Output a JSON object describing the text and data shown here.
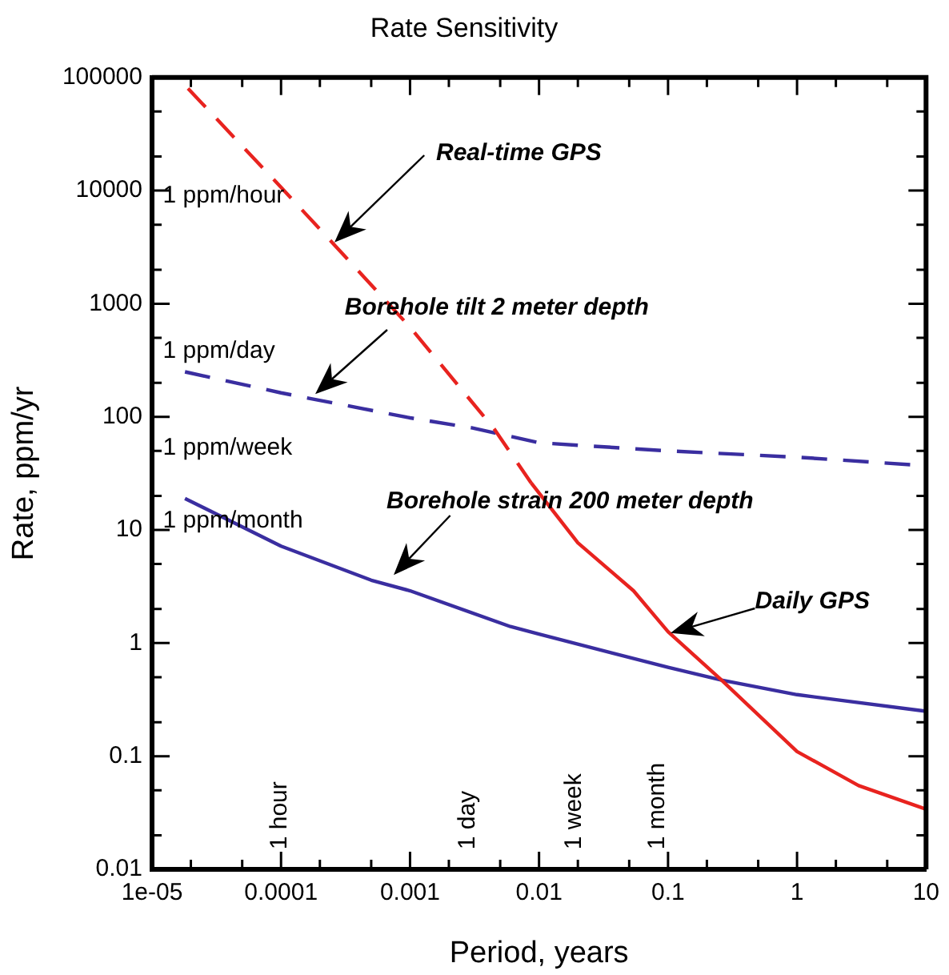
{
  "chart_data": {
    "type": "line",
    "title": "Rate Sensitivity",
    "xlabel": "Period, years",
    "ylabel": "Rate, ppm/yr",
    "log": "xy",
    "grid": false,
    "legend": false,
    "marker": "none",
    "xlim": [
      1e-05,
      10
    ],
    "ylim": [
      0.01,
      100000
    ],
    "xticks": [
      {
        "value": 1e-05,
        "label": "1e-05"
      },
      {
        "value": 2e-05,
        "label": null
      },
      {
        "value": 5e-05,
        "label": null
      },
      0.0001,
      {
        "value": 0.0002,
        "label": null
      },
      {
        "value": 0.0005,
        "label": null
      },
      0.001,
      {
        "value": 0.002,
        "label": null
      },
      {
        "value": 0.005,
        "label": null
      },
      0.01,
      {
        "value": 0.02,
        "label": null
      },
      {
        "value": 0.05,
        "label": null
      },
      0.1,
      {
        "value": 0.2,
        "label": null
      },
      {
        "value": 0.5,
        "label": null
      },
      1,
      {
        "value": 2,
        "label": null
      },
      {
        "value": 5,
        "label": null
      },
      10
    ],
    "yticks": [
      0.01,
      {
        "value": 0.02,
        "label": null
      },
      {
        "value": 0.05,
        "label": null
      },
      0.1,
      {
        "value": 0.2,
        "label": null
      },
      {
        "value": 0.5,
        "label": null
      },
      1,
      {
        "value": 2,
        "label": null
      },
      {
        "value": 5,
        "label": null
      },
      10,
      {
        "value": 20,
        "label": null
      },
      {
        "value": 50,
        "label": null
      },
      100,
      {
        "value": 200,
        "label": null
      },
      {
        "value": 500,
        "label": null
      },
      1000,
      {
        "value": 2000,
        "label": null
      },
      {
        "value": 5000,
        "label": null
      },
      10000,
      {
        "value": 20000,
        "label": null
      },
      {
        "value": 50000,
        "label": null
      },
      100000
    ],
    "series": [
      {
        "color": "#e8231f",
        "line_style": "dashed",
        "x": [
          1.9e-05,
          0.0001,
          0.00026,
          0.001,
          0.0045,
          0.0087
        ],
        "values": [
          80000,
          10700,
          3300,
          620,
          78,
          26
        ]
      },
      {
        "color": "#e8231f",
        "line_style": "solid",
        "x": [
          0.0087,
          0.02,
          0.054,
          0.1,
          0.26,
          1,
          3,
          10
        ],
        "values": [
          26,
          7.7,
          2.9,
          1.26,
          0.47,
          0.11,
          0.055,
          0.034
        ]
      },
      {
        "color": "#3a2ea0",
        "line_style": "dashed",
        "x": [
          1.8e-05,
          0.0001,
          0.001,
          0.003,
          0.01,
          0.1,
          1,
          10
        ],
        "values": [
          250,
          163,
          98,
          80,
          59,
          50,
          44,
          37
        ]
      },
      {
        "color": "#3a2ea0",
        "line_style": "solid",
        "x": [
          1.8e-05,
          0.0001,
          0.0005,
          0.001,
          0.006,
          0.01,
          0.1,
          0.26,
          1,
          10
        ],
        "values": [
          19,
          7.2,
          3.6,
          2.9,
          1.4,
          1.2,
          0.61,
          0.47,
          0.35,
          0.25
        ]
      }
    ],
    "annotations": [
      "1 ppm/hour",
      "1 ppm/day",
      "1 ppm/week",
      "1 ppm/month",
      "1 hour",
      "1 day",
      "1 week",
      "1 month",
      "Real-time GPS",
      "Borehole tilt 2 meter depth",
      "Borehole strain 200 meter depth",
      "Daily GPS"
    ]
  }
}
